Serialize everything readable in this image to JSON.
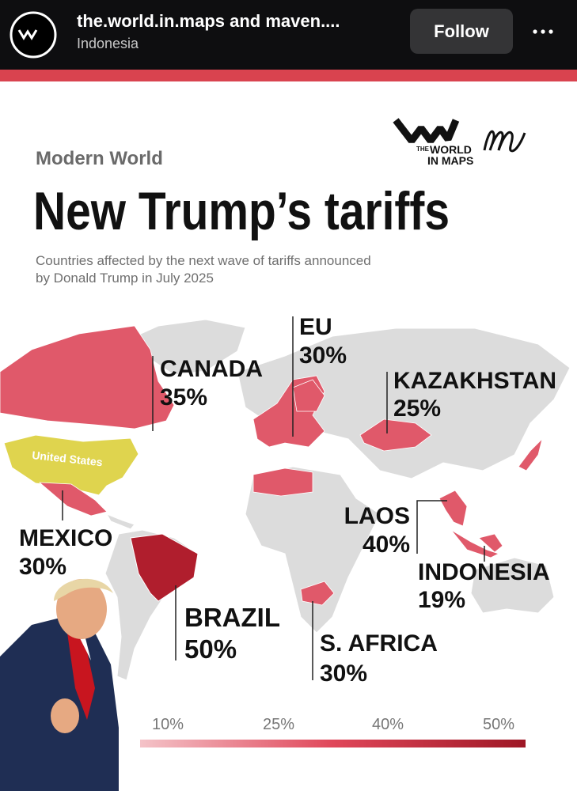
{
  "header": {
    "account": "the.world.in.maps and maven....",
    "location": "Indonesia",
    "follow": "Follow"
  },
  "post": {
    "logo": {
      "small": "THE",
      "line1": "WORLD",
      "line2": "IN MAPS"
    },
    "kicker": "Modern World",
    "title": "New Trump’s tariffs",
    "subtitle": [
      "Countries affected by the next wave of tariffs announced",
      "by Donald Trump in July 2025"
    ],
    "map_label": "United States",
    "countries": [
      {
        "name": "CANADA",
        "rate": "35%"
      },
      {
        "name": "EU",
        "rate": "30%"
      },
      {
        "name": "KAZAKHSTAN",
        "rate": "25%"
      },
      {
        "name": "MEXICO",
        "rate": "30%"
      },
      {
        "name": "LAOS",
        "rate": "40%"
      },
      {
        "name": "INDONESIA",
        "rate": "19%"
      },
      {
        "name": "BRAZIL",
        "rate": "50%"
      },
      {
        "name": "S. AFRICA",
        "rate": "30%"
      }
    ],
    "legend": [
      "10%",
      "25%",
      "40%",
      "50%"
    ]
  }
}
